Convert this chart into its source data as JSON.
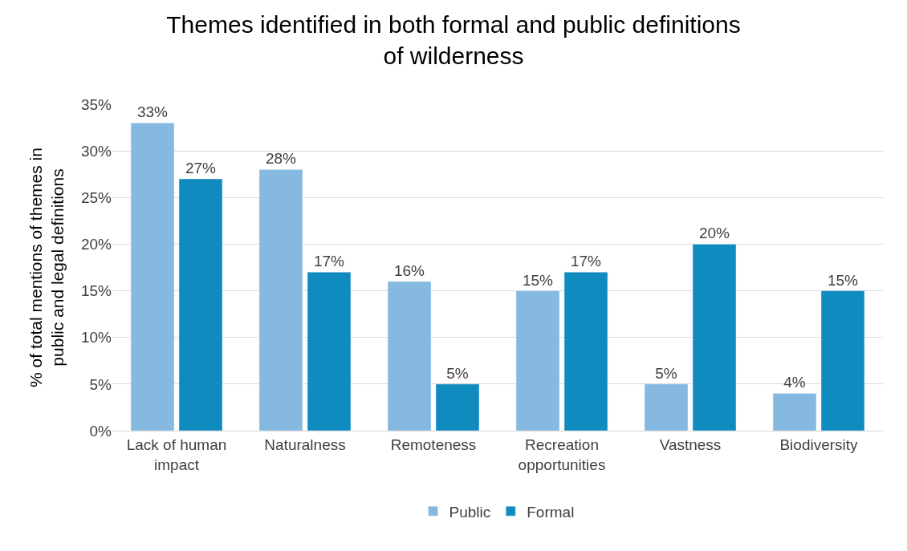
{
  "chart_data": {
    "type": "bar",
    "title": "Themes identified in both formal and public definitions of wilderness",
    "ylabel": "% of total mentions of themes in public and legal definitions",
    "categories": [
      "Lack of human impact",
      "Naturalness",
      "Remoteness",
      "Recreation opportunities",
      "Vastness",
      "Biodiversity"
    ],
    "series": [
      {
        "name": "Public",
        "color": "#86b9e0",
        "values": [
          33,
          28,
          16,
          15,
          5,
          4
        ],
        "value_labels": [
          "33%",
          "28%",
          "16%",
          "15%",
          "5%",
          "4%"
        ]
      },
      {
        "name": "Formal",
        "color": "#0f8bbf",
        "values": [
          27,
          17,
          5,
          17,
          20,
          15
        ],
        "value_labels": [
          "27%",
          "17%",
          "5%",
          "17%",
          "20%",
          "15%"
        ]
      }
    ],
    "ylim": [
      0,
      35
    ],
    "yticks": [
      {
        "value": 0,
        "label": "0%"
      },
      {
        "value": 5,
        "label": "5%"
      },
      {
        "value": 10,
        "label": "10%"
      },
      {
        "value": 15,
        "label": "15%"
      },
      {
        "value": 20,
        "label": "20%"
      },
      {
        "value": 25,
        "label": "25%"
      },
      {
        "value": 30,
        "label": "30%"
      },
      {
        "value": 35,
        "label": "35%"
      }
    ],
    "grid": "y",
    "legend": "bottom"
  }
}
